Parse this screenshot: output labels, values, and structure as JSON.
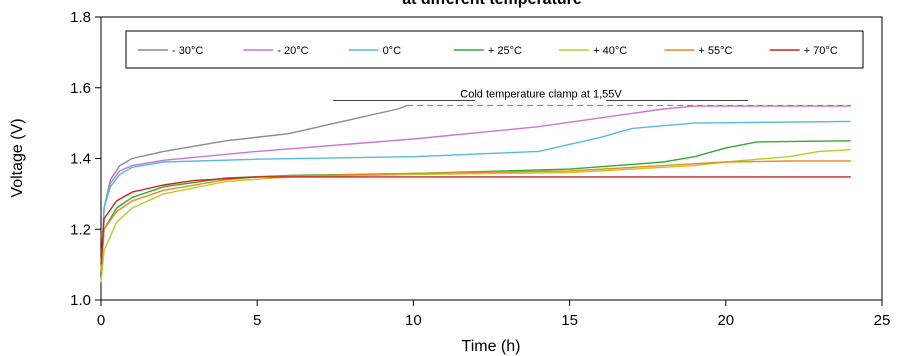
{
  "chart_data": {
    "type": "line",
    "title": "at different temperature",
    "xlabel": "Time (h)",
    "ylabel": "Voltage (V)",
    "xlim": [
      0,
      25
    ],
    "ylim": [
      1.0,
      1.8
    ],
    "x_ticks": [
      0,
      5,
      10,
      15,
      20,
      25
    ],
    "x_tick_labels": [
      "0",
      "5",
      "10",
      "15",
      "20",
      "25"
    ],
    "y_ticks": [
      1.0,
      1.2,
      1.4,
      1.6,
      1.8
    ],
    "y_tick_labels": [
      "1.0",
      "1.2",
      "1.4",
      "1.6",
      "1.8"
    ],
    "grid": false,
    "legend_position": "top",
    "annotation": {
      "text": "Cold temperature clamp at 1,55V",
      "y": 1.55,
      "x_range": [
        9.8,
        24
      ]
    },
    "series": [
      {
        "name": "- 30°C",
        "color": "#8c8c8c",
        "points": [
          [
            0,
            1.08
          ],
          [
            0.1,
            1.26
          ],
          [
            0.3,
            1.34
          ],
          [
            0.6,
            1.38
          ],
          [
            1,
            1.4
          ],
          [
            2,
            1.42
          ],
          [
            4,
            1.45
          ],
          [
            6,
            1.47
          ],
          [
            8,
            1.51
          ],
          [
            9.5,
            1.54
          ],
          [
            9.8,
            1.55
          ]
        ]
      },
      {
        "name": "- 20°C",
        "color": "#cc77cc",
        "points": [
          [
            0,
            1.08
          ],
          [
            0.1,
            1.26
          ],
          [
            0.3,
            1.33
          ],
          [
            0.6,
            1.365
          ],
          [
            1,
            1.38
          ],
          [
            2,
            1.395
          ],
          [
            5,
            1.42
          ],
          [
            10,
            1.455
          ],
          [
            14,
            1.49
          ],
          [
            16,
            1.515
          ],
          [
            18,
            1.54
          ],
          [
            19,
            1.548
          ],
          [
            24,
            1.548
          ]
        ]
      },
      {
        "name": "0°C",
        "color": "#55bbdd",
        "points": [
          [
            0,
            1.08
          ],
          [
            0.1,
            1.26
          ],
          [
            0.3,
            1.32
          ],
          [
            0.6,
            1.355
          ],
          [
            1,
            1.375
          ],
          [
            2,
            1.39
          ],
          [
            5,
            1.398
          ],
          [
            10,
            1.405
          ],
          [
            14,
            1.42
          ],
          [
            16,
            1.46
          ],
          [
            17,
            1.485
          ],
          [
            19,
            1.5
          ],
          [
            24,
            1.505
          ]
        ]
      },
      {
        "name": "+ 25°C",
        "color": "#33aa33",
        "points": [
          [
            0,
            1.08
          ],
          [
            0.1,
            1.2
          ],
          [
            0.5,
            1.26
          ],
          [
            1,
            1.29
          ],
          [
            2,
            1.32
          ],
          [
            4,
            1.345
          ],
          [
            6,
            1.352
          ],
          [
            10,
            1.358
          ],
          [
            15,
            1.37
          ],
          [
            18,
            1.39
          ],
          [
            19,
            1.405
          ],
          [
            20,
            1.43
          ],
          [
            21,
            1.447
          ],
          [
            24,
            1.45
          ]
        ]
      },
      {
        "name": "+ 40°C",
        "color": "#bbcc22",
        "points": [
          [
            0,
            1.05
          ],
          [
            0.1,
            1.14
          ],
          [
            0.5,
            1.22
          ],
          [
            1,
            1.26
          ],
          [
            2,
            1.3
          ],
          [
            4,
            1.335
          ],
          [
            6,
            1.348
          ],
          [
            10,
            1.355
          ],
          [
            15,
            1.36
          ],
          [
            19,
            1.38
          ],
          [
            20,
            1.39
          ],
          [
            22,
            1.405
          ],
          [
            23,
            1.42
          ],
          [
            24,
            1.425
          ]
        ]
      },
      {
        "name": "+ 55°C",
        "color": "#ee8822",
        "points": [
          [
            0,
            1.08
          ],
          [
            0.1,
            1.2
          ],
          [
            0.5,
            1.25
          ],
          [
            1,
            1.28
          ],
          [
            2,
            1.31
          ],
          [
            4,
            1.34
          ],
          [
            5,
            1.348
          ],
          [
            10,
            1.358
          ],
          [
            15,
            1.365
          ],
          [
            18,
            1.38
          ],
          [
            20,
            1.39
          ],
          [
            22,
            1.393
          ],
          [
            24,
            1.393
          ]
        ]
      },
      {
        "name": "+ 70°C",
        "color": "#cc2222",
        "points": [
          [
            0,
            1.1
          ],
          [
            0.1,
            1.23
          ],
          [
            0.5,
            1.28
          ],
          [
            1,
            1.305
          ],
          [
            2,
            1.325
          ],
          [
            3,
            1.338
          ],
          [
            5,
            1.348
          ],
          [
            24,
            1.348
          ]
        ]
      }
    ]
  }
}
